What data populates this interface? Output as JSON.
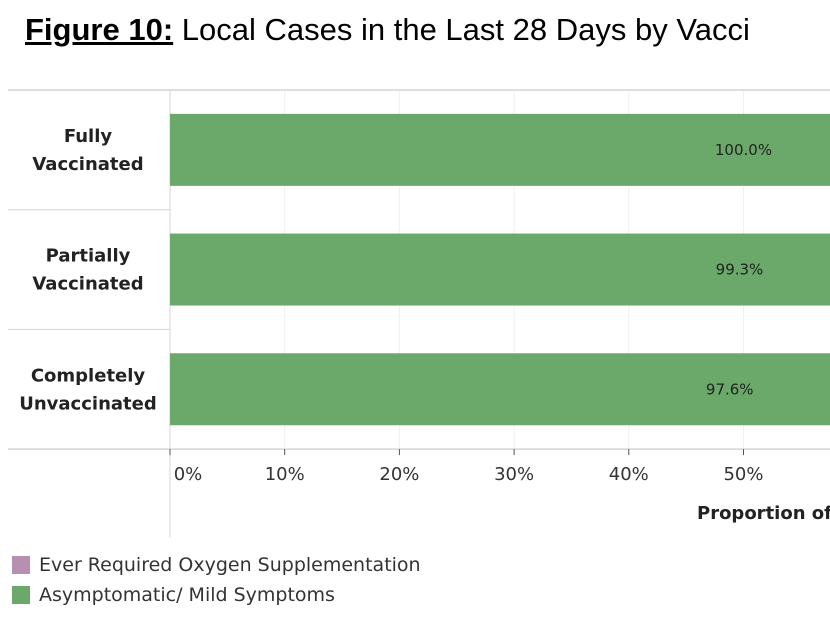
{
  "title": {
    "prefix": "Figure 10:",
    "text": "Local Cases in the Last 28 Days by Vacci"
  },
  "chart_data": {
    "type": "bar",
    "orientation": "horizontal",
    "stacked": true,
    "categories": [
      [
        "Fully",
        "Vaccinated"
      ],
      [
        "Partially",
        "Vaccinated"
      ],
      [
        "Completely",
        "Unvaccinated"
      ]
    ],
    "series": [
      {
        "name": "Asymptomatic/ Mild Symptoms",
        "color": "#6aa96a",
        "values": [
          100.0,
          99.3,
          97.6
        ],
        "labels": [
          "100.0%",
          "99.3%",
          "97.6%"
        ]
      },
      {
        "name": "Ever Required Oxygen Supplementation",
        "color": "#b78fb3"
      }
    ],
    "xticks": [
      "0%",
      "10%",
      "20%",
      "30%",
      "40%",
      "50%"
    ],
    "xlabel": "Proportion of",
    "xlim": [
      0,
      100
    ],
    "grid": true,
    "legend_position": "bottom-left"
  }
}
